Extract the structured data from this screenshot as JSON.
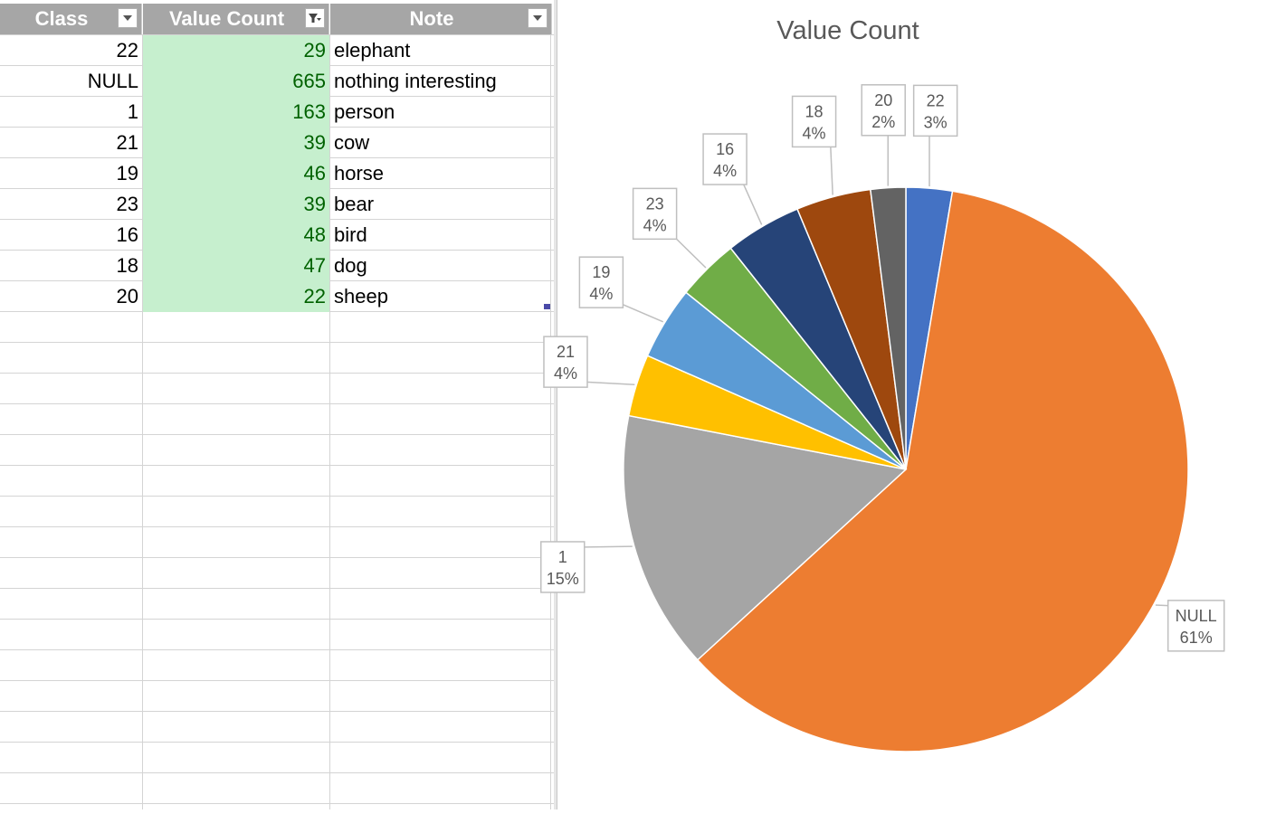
{
  "table": {
    "columns": [
      {
        "label": "Class",
        "filtered": false
      },
      {
        "label": "Value Count",
        "filtered": true
      },
      {
        "label": "Note",
        "filtered": false
      }
    ],
    "rows": [
      {
        "class": "22",
        "count": "29",
        "note": "elephant"
      },
      {
        "class": "NULL",
        "count": "665",
        "note": "nothing interesting"
      },
      {
        "class": "1",
        "count": "163",
        "note": "person"
      },
      {
        "class": "21",
        "count": "39",
        "note": "cow"
      },
      {
        "class": "19",
        "count": "46",
        "note": "horse"
      },
      {
        "class": "23",
        "count": "39",
        "note": "bear"
      },
      {
        "class": "16",
        "count": "48",
        "note": "bird"
      },
      {
        "class": "18",
        "count": "47",
        "note": "dog"
      },
      {
        "class": "20",
        "count": "22",
        "note": "sheep"
      }
    ]
  },
  "colors": {
    "header_bg": "#a6a6a6",
    "highlight_fill": "#c6efce",
    "highlight_text": "#006100"
  },
  "chart_data": {
    "type": "pie",
    "title": "Value Count",
    "categories": [
      "22",
      "NULL",
      "1",
      "21",
      "19",
      "23",
      "16",
      "18",
      "20"
    ],
    "values": [
      29,
      665,
      163,
      39,
      46,
      39,
      48,
      47,
      22
    ],
    "percent_labels": [
      "3%",
      "61%",
      "15%",
      "4%",
      "4%",
      "4%",
      "4%",
      "4%",
      "2%"
    ],
    "colors": [
      "#4472c4",
      "#ed7d31",
      "#a5a5a5",
      "#ffc000",
      "#5b9bd5",
      "#70ad47",
      "#264478",
      "#9e480e",
      "#636363"
    ],
    "start_angle": "12 o'clock, clockwise",
    "legend": "none",
    "data_labels": "category and percentage in callouts"
  }
}
